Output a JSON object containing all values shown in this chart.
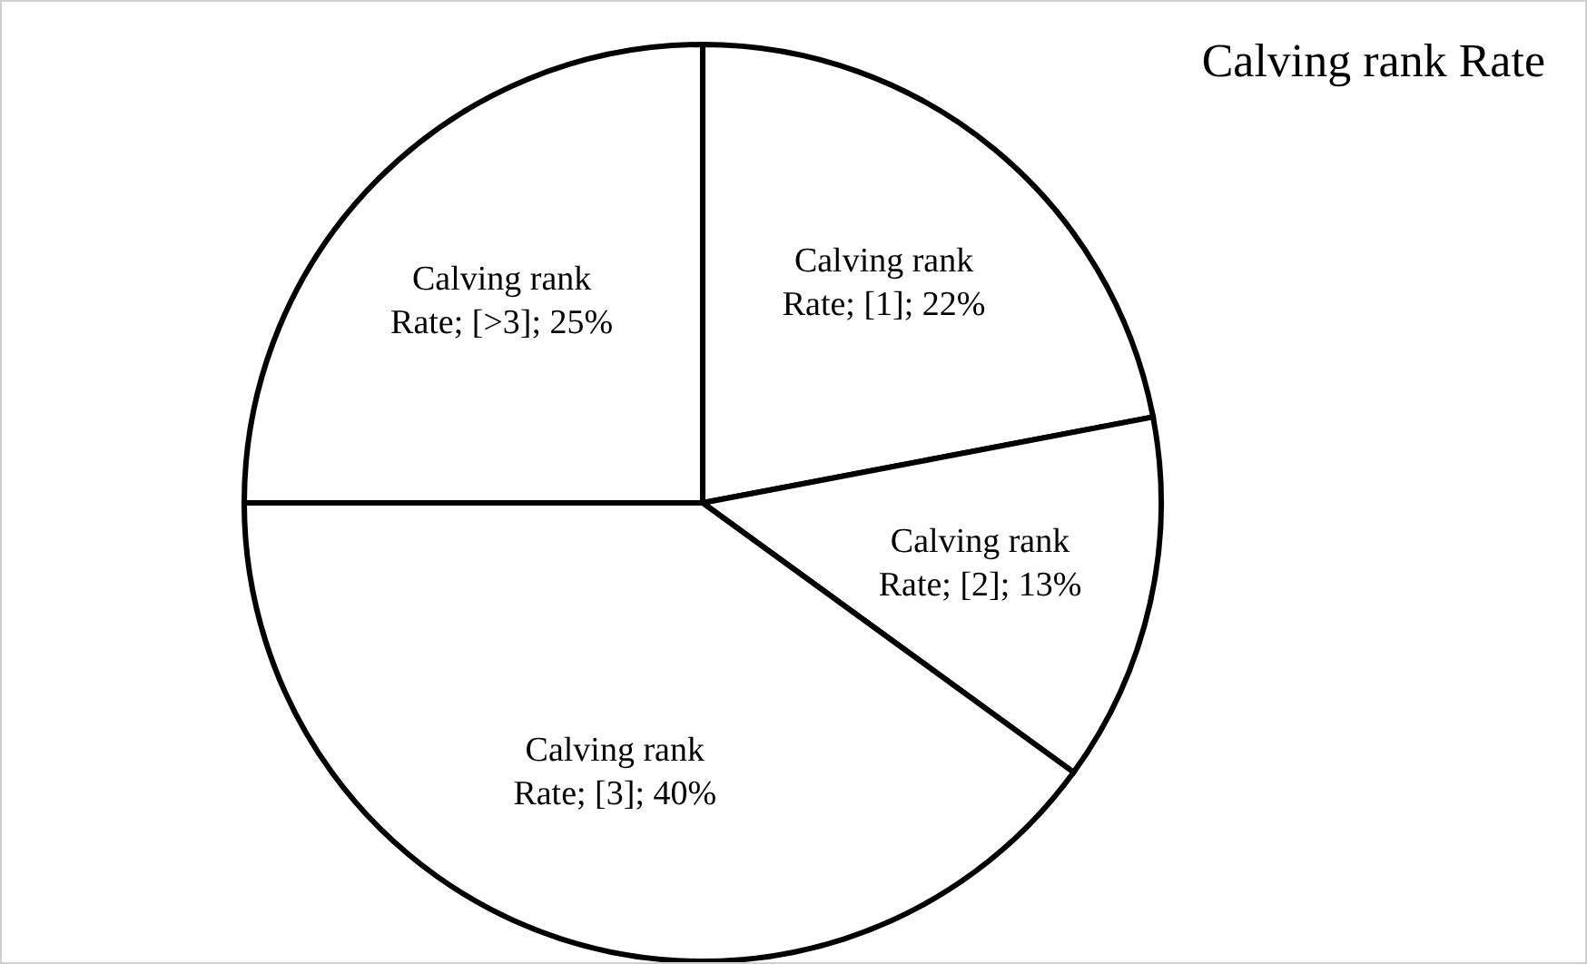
{
  "chart_data": {
    "type": "pie",
    "title": "Calving rank Rate",
    "categories": [
      "Calving rank Rate; [1]; 22%",
      "Calving rank Rate; [2]; 13%",
      "Calving rank Rate; [3]; 40%",
      "Calving rank Rate; [>3]; 25%"
    ],
    "values": [
      22,
      13,
      40,
      25
    ],
    "colors": [
      "#ffffff",
      "#ffffff",
      "#ffffff",
      "#ffffff"
    ],
    "legend": false
  }
}
